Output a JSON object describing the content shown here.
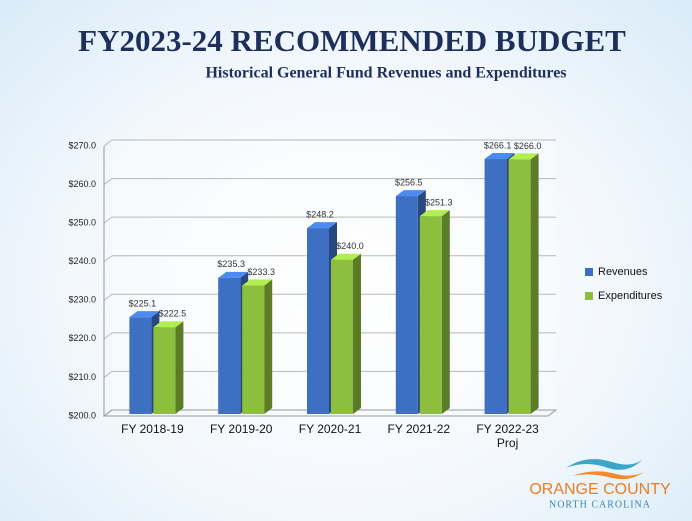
{
  "title": "FY2023-24 RECOMMENDED BUDGET",
  "chart_data": {
    "type": "bar3d",
    "title": "Historical General Fund Revenues and Expenditures",
    "categories": [
      "FY 2018-19",
      "FY 2019-20",
      "FY 2020-21",
      "FY 2021-22",
      "FY 2022-23 Proj"
    ],
    "series": [
      {
        "name": "Revenues",
        "color": "#3d6fc2",
        "values": [
          225.1,
          235.3,
          248.2,
          256.5,
          266.1
        ],
        "value_labels": [
          "$225.1",
          "$235.3",
          "$248.2",
          "$256.5",
          "$266.1"
        ]
      },
      {
        "name": "Expenditures",
        "color": "#8dbf3e",
        "values": [
          222.5,
          233.3,
          240.0,
          251.3,
          266.0
        ],
        "value_labels": [
          "$222.5",
          "$233.3",
          "$240.0",
          "$251.3",
          "$266.0"
        ]
      }
    ],
    "ylim": [
      200,
      270
    ],
    "yticks": [
      {
        "value": 200,
        "label": "$200.0"
      },
      {
        "value": 210,
        "label": "$210.0"
      },
      {
        "value": 220,
        "label": "$220.0"
      },
      {
        "value": 230,
        "label": "$230.0"
      },
      {
        "value": 240,
        "label": "$240.0"
      },
      {
        "value": 250,
        "label": "$250.0"
      },
      {
        "value": 260,
        "label": "$260.0"
      },
      {
        "value": 270,
        "label": "$270.0"
      }
    ],
    "grid": true,
    "legend": "right"
  },
  "logo": {
    "name": "ORANGE COUNTY",
    "state": "NORTH CAROLINA"
  }
}
